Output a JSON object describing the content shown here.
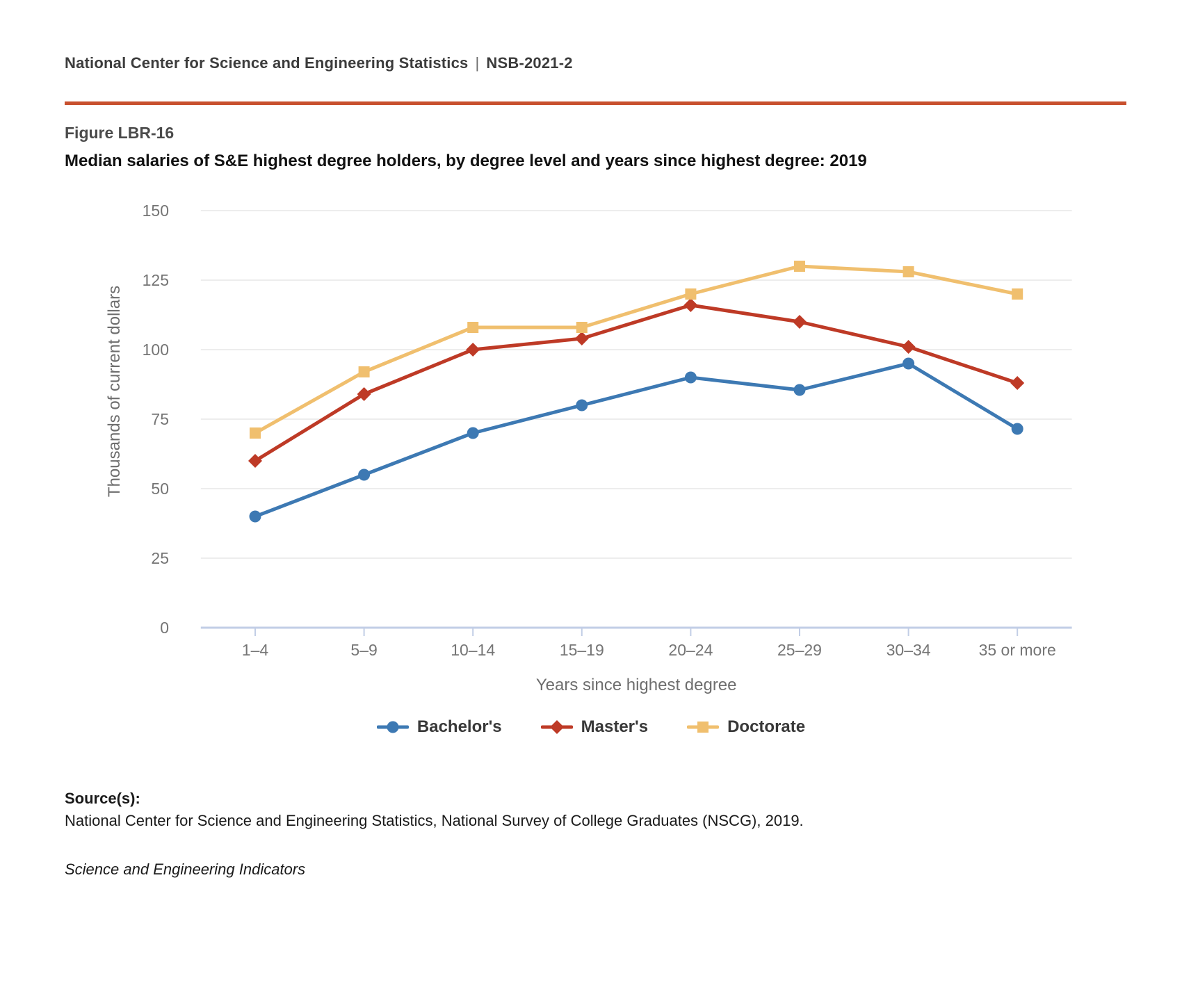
{
  "page": {
    "header": {
      "org": "National Center for Science and Engineering Statistics",
      "separator": "|",
      "report_id": "NSB-2021-2"
    },
    "figure_label": "Figure LBR-16",
    "title": "Median salaries of S&E highest degree holders, by degree level and years since highest degree: 2019",
    "accent_rule_color": "#c8502e",
    "source": {
      "heading": "Source(s):",
      "text": "National Center for Science and Engineering Statistics, National Survey of College Graduates (NSCG), 2019.",
      "publication": "Science and Engineering Indicators"
    }
  },
  "chart_data": {
    "type": "line",
    "title": "Median salaries of S&E highest degree holders, by degree level and years since highest degree: 2019",
    "categories": [
      "1–4",
      "5–9",
      "10–14",
      "15–19",
      "20–24",
      "25–29",
      "30–34",
      "35 or more"
    ],
    "series": [
      {
        "name": "Bachelor's",
        "marker": "circle",
        "color": "#3d79b3",
        "values": [
          40,
          55,
          70,
          80,
          90,
          85.5,
          95,
          71.5
        ]
      },
      {
        "name": "Master's",
        "marker": "diamond",
        "color": "#be3a26",
        "values": [
          60,
          84,
          100,
          104,
          116,
          110,
          101,
          88
        ]
      },
      {
        "name": "Doctorate",
        "marker": "square",
        "color": "#f0bf6e",
        "values": [
          70,
          92,
          108,
          108,
          120,
          130,
          128,
          120
        ]
      }
    ],
    "xlabel": "Years since highest degree",
    "ylabel": "Thousands of current dollars",
    "ylim": [
      0,
      150
    ],
    "yticks": [
      0,
      25,
      50,
      75,
      100,
      125,
      150
    ],
    "grid": true,
    "legend_position": "bottom",
    "styles": {
      "gridline_color": "#ededed",
      "axis_line_color": "#c2cee6",
      "tick_label_color": "#757575",
      "axis_title_color": "#6e6e6e",
      "line_width": 5
    }
  }
}
